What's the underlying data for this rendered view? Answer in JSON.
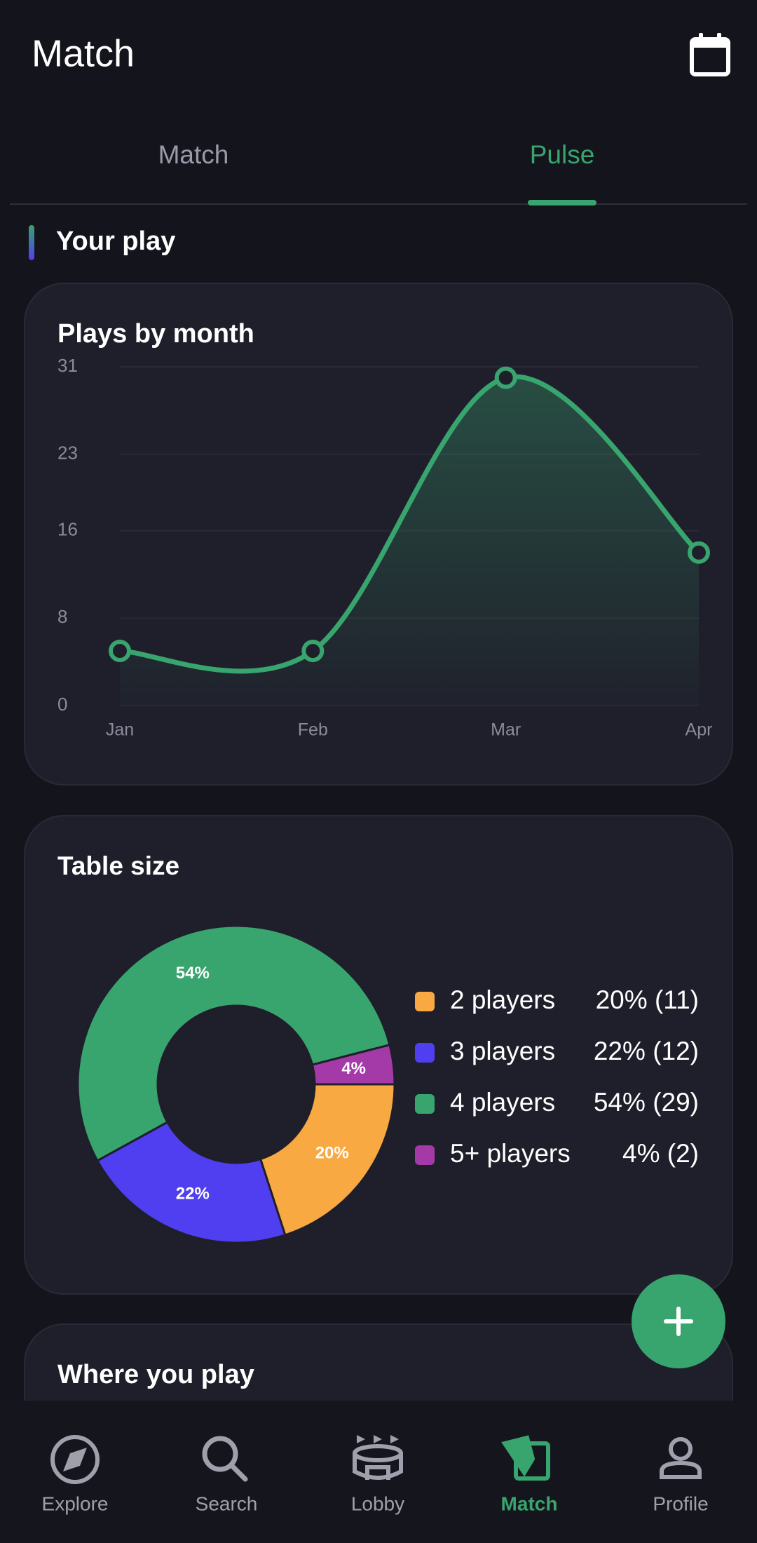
{
  "header": {
    "title": "Match"
  },
  "tabs": [
    "Match",
    "Pulse"
  ],
  "section": {
    "title": "Your play"
  },
  "chart_data": [
    {
      "type": "line",
      "title": "Plays by month",
      "categories": [
        "Jan",
        "Feb",
        "Mar",
        "Apr"
      ],
      "values": [
        5,
        5,
        30,
        14
      ],
      "color": "#38a46e",
      "ylim": [
        0,
        31
      ],
      "yticks": [
        0,
        8,
        16,
        23,
        31
      ],
      "grid": true
    },
    {
      "type": "donut",
      "title": "Table size",
      "categories": [
        "2 players",
        "3 players",
        "4 players",
        "5+ players"
      ],
      "values": [
        20,
        22,
        54,
        4
      ],
      "value_labels": [
        "20%",
        "22%",
        "54%",
        "4%"
      ],
      "legend_labels": [
        "20% (11)",
        "22% (12)",
        "54% (29)",
        "4% (2)"
      ],
      "colors": [
        "#f9a942",
        "#4f3ff0",
        "#38a46e",
        "#a43aa8"
      ]
    }
  ],
  "next_card": {
    "title": "Where you play"
  },
  "nav": [
    "Explore",
    "Search",
    "Lobby",
    "Match",
    "Profile"
  ]
}
